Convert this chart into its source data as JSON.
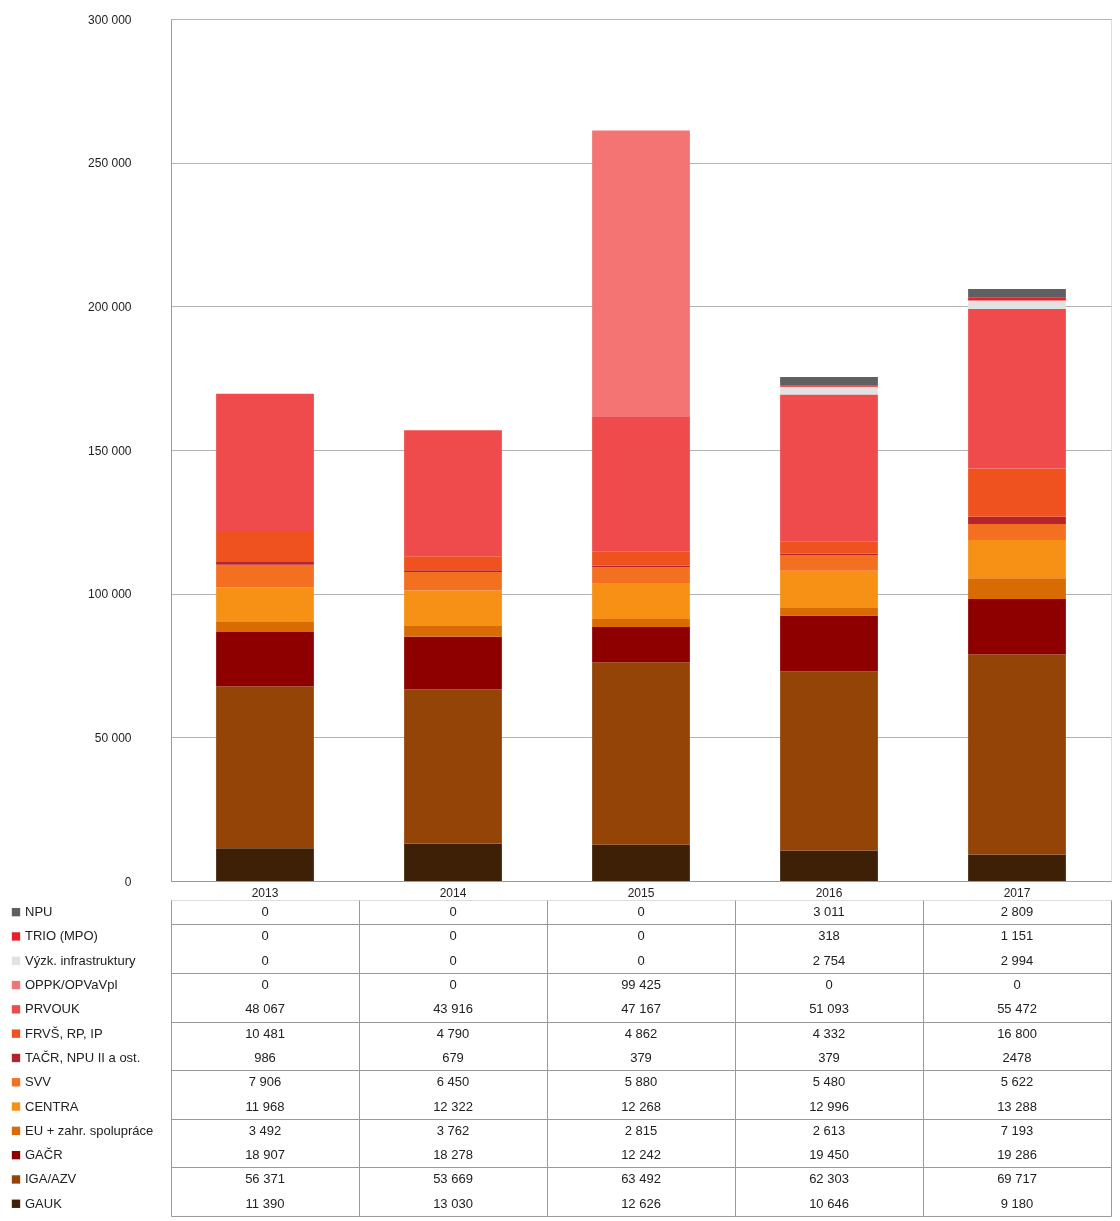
{
  "chart_data": {
    "type": "bar",
    "stacked": true,
    "categories": [
      "2013",
      "2014",
      "2015",
      "2016",
      "2017"
    ],
    "ylim": [
      0,
      300000
    ],
    "yticks": [
      0,
      {
        "value": 50000,
        "label": "50 000"
      },
      {
        "value": 100000,
        "label": "100 000"
      },
      {
        "value": 150000,
        "label": "150 000"
      },
      {
        "value": 200000,
        "label": "200 000"
      },
      {
        "value": 250000,
        "label": "250 000"
      },
      {
        "value": 300000,
        "label": "300 000"
      }
    ],
    "grid": "y",
    "legend": "bottom left",
    "series": [
      {
        "name": "GAUK",
        "color": "#3d2006",
        "values": [
          11390,
          13030,
          12626,
          10646,
          9180
        ],
        "value_labels": [
          "11 390",
          "13 030",
          "12 626",
          "10 646",
          "9 180"
        ]
      },
      {
        "name": "IGA/AZV",
        "color": "#934406",
        "values": [
          56371,
          53669,
          63492,
          62303,
          69717
        ],
        "value_labels": [
          "56 371",
          "53 669",
          "63 492",
          "62 303",
          "69 717"
        ]
      },
      {
        "name": "GAČR",
        "color": "#8e0000",
        "values": [
          18907,
          18278,
          12242,
          19450,
          19286
        ],
        "value_labels": [
          "18 907",
          "18 278",
          "12 242",
          "19 450",
          "19 286"
        ]
      },
      {
        "name": "EU + zahr. spolupráce",
        "color": "#d96b05",
        "values": [
          3492,
          3762,
          2815,
          2613,
          7193
        ],
        "value_labels": [
          "3 492",
          "3 762",
          "2 815",
          "2 613",
          "7 193"
        ]
      },
      {
        "name": "CENTRA",
        "color": "#f79116",
        "values": [
          11968,
          12322,
          12268,
          12996,
          13288
        ],
        "value_labels": [
          "11 968",
          "12 322",
          "12 268",
          "12 996",
          "13 288"
        ]
      },
      {
        "name": "SVV",
        "color": "#f37021",
        "values": [
          7906,
          6450,
          5880,
          5480,
          5622
        ],
        "value_labels": [
          "7 906",
          "6 450",
          "5 880",
          "5 480",
          "5 622"
        ]
      },
      {
        "name": "TAČR, NPU II a ost.",
        "color": "#b5242a",
        "values": [
          986,
          679,
          379,
          379,
          2478
        ],
        "value_labels": [
          "986",
          "679",
          "379",
          "379",
          "2478"
        ]
      },
      {
        "name": "FRVŠ, RP, IP",
        "color": "#ef521e",
        "values": [
          10481,
          4790,
          4862,
          4332,
          16800
        ],
        "value_labels": [
          "10 481",
          "4 790",
          "4 862",
          "4 332",
          "16 800"
        ]
      },
      {
        "name": "PRVOUK",
        "color": "#ef4b4d",
        "values": [
          48067,
          43916,
          47167,
          51093,
          55472
        ],
        "value_labels": [
          "48 067",
          "43 916",
          "47 167",
          "51 093",
          "55 472"
        ]
      },
      {
        "name": "OPPK/OPVaVpI",
        "color": "#f47474",
        "values": [
          0,
          0,
          99425,
          0,
          0
        ],
        "value_labels": [
          "0",
          "0",
          "99 425",
          "0",
          "0"
        ]
      },
      {
        "name": "Výzk. infrastruktury",
        "color": "#e2e2e2",
        "values": [
          0,
          0,
          0,
          2754,
          2994
        ],
        "value_labels": [
          "0",
          "0",
          "0",
          "2 754",
          "2 994"
        ]
      },
      {
        "name": "TRIO (MPO)",
        "color": "#e8202a",
        "values": [
          0,
          0,
          0,
          318,
          1151
        ],
        "value_labels": [
          "0",
          "0",
          "0",
          "318",
          "1 151"
        ]
      },
      {
        "name": "NPU",
        "color": "#606060",
        "values": [
          0,
          0,
          0,
          3011,
          2809
        ],
        "value_labels": [
          "0",
          "0",
          "0",
          "3 011",
          "2 809"
        ]
      }
    ]
  }
}
